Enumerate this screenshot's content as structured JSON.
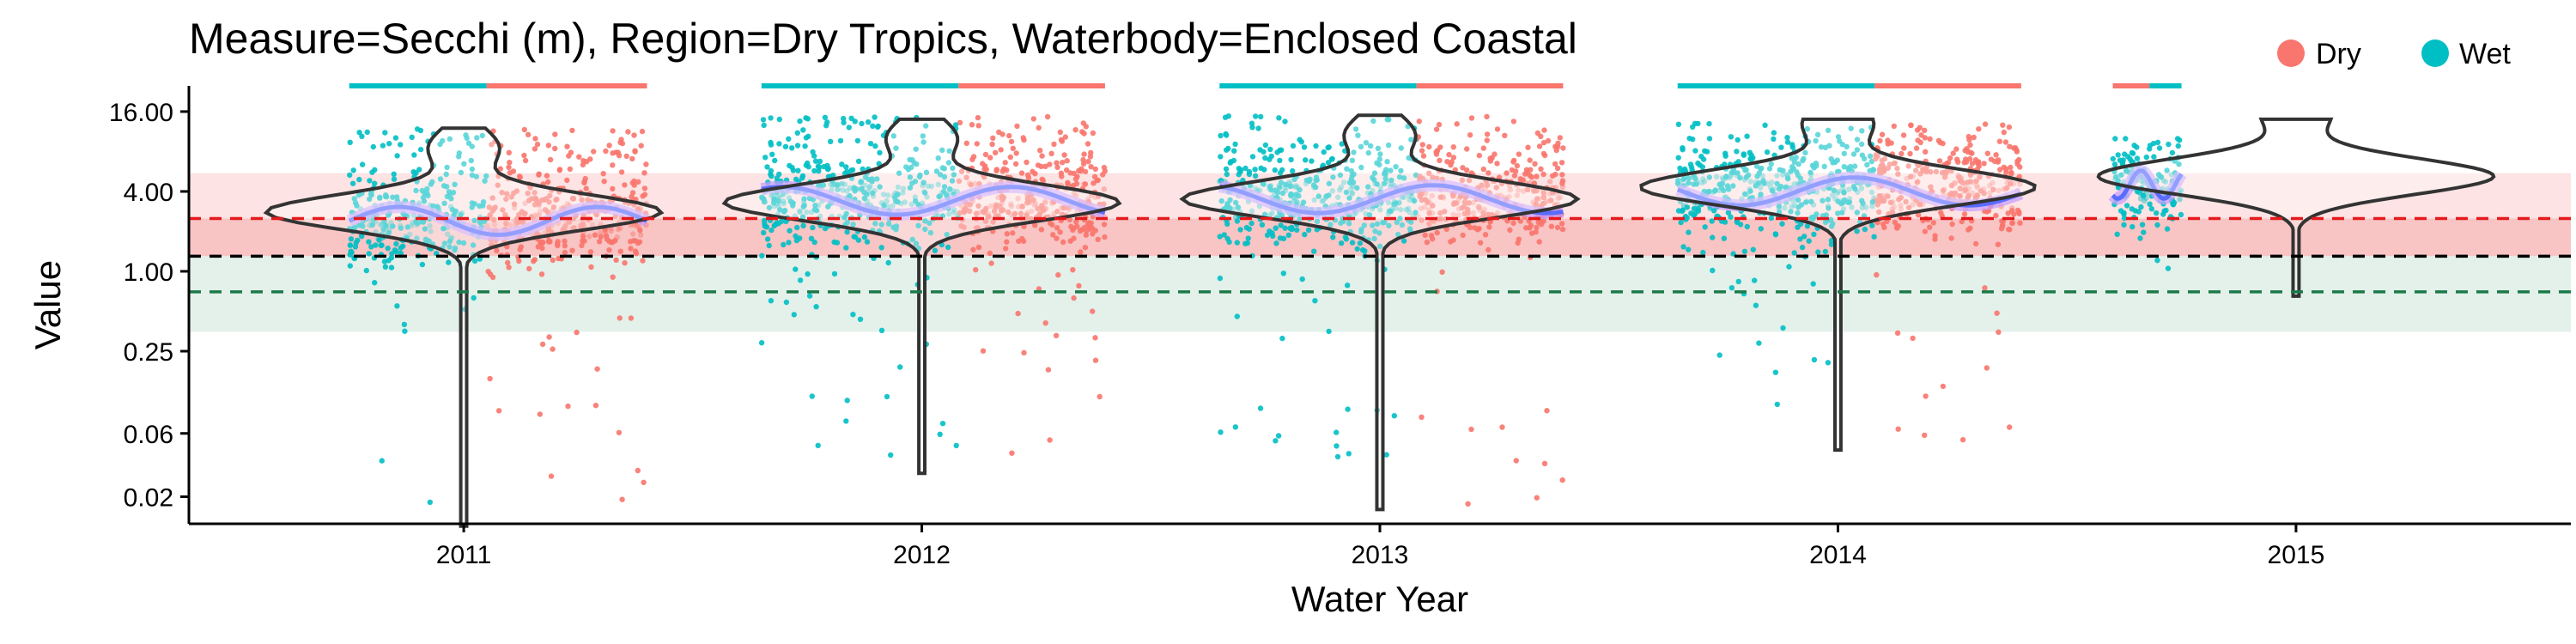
{
  "chart_data": {
    "type": "scatter",
    "title": "Measure=Secchi (m), Region=Dry Tropics, Waterbody=Enclosed Coastal",
    "xlabel": "Water Year",
    "ylabel": "Value",
    "y_scale": "log2",
    "ylim": [
      0.0125,
      25
    ],
    "y_ticks": [
      0.02,
      0.06,
      0.25,
      1.0,
      4.0,
      16.0
    ],
    "y_tick_labels": [
      "0.02",
      "0.06",
      "0.25",
      "1.00",
      "4.00",
      "16.00"
    ],
    "xlim": [
      2010.4,
      2015.6
    ],
    "x_ticks": [
      2011,
      2012,
      2013,
      2014,
      2015
    ],
    "x_tick_labels": [
      "2011",
      "2012",
      "2013",
      "2014",
      "2015"
    ],
    "legend": {
      "placement": "top-right",
      "entries": [
        {
          "label": "Dry",
          "color": "#F8766D"
        },
        {
          "label": "Wet",
          "color": "#00BFC4"
        }
      ]
    },
    "colors": {
      "dry": "#F8766D",
      "wet": "#00BFC4",
      "trend": "#5A6BFF",
      "trend_light": "#C39BFF",
      "violin": "#333333",
      "ref_red": "#E41A1C",
      "ref_black": "#000000",
      "ref_green": "#1B7A4A",
      "band_red_light": "#FDE3E3",
      "band_red": "#F9C4C4",
      "band_green": "#E3F1EA"
    },
    "reference_lines": [
      {
        "value": 2.5,
        "color": "red",
        "style": "dashed"
      },
      {
        "value": 1.3,
        "color": "black",
        "style": "dashed"
      },
      {
        "value": 0.7,
        "color": "green",
        "style": "dashed"
      }
    ],
    "bands": [
      {
        "from": 2.5,
        "to": 5.5,
        "color": "light-red"
      },
      {
        "from": 1.3,
        "to": 2.5,
        "color": "red"
      },
      {
        "from": 0.35,
        "to": 1.3,
        "color": "green"
      }
    ],
    "season_bars": [
      {
        "year": 2011,
        "wet": [
          2010.75,
          2011.05
        ],
        "dry": [
          2011.05,
          2011.4
        ]
      },
      {
        "year": 2012,
        "wet": [
          2011.65,
          2012.08
        ],
        "dry": [
          2012.08,
          2012.4
        ]
      },
      {
        "year": 2013,
        "wet": [
          2012.65,
          2013.08
        ],
        "dry": [
          2013.08,
          2013.4
        ]
      },
      {
        "year": 2014,
        "wet": [
          2013.65,
          2014.08
        ],
        "dry": [
          2014.08,
          2014.4
        ]
      },
      {
        "year": 2015,
        "wet": [
          2014.68,
          2014.75
        ],
        "dry": [
          2014.6,
          2014.68
        ]
      }
    ],
    "scatter_extents": [
      {
        "year": 2011,
        "from": 2010.75,
        "to": 2011.4,
        "wet_to": 2011.05,
        "min": 0.014,
        "max": 12,
        "median": 2.4
      },
      {
        "year": 2012,
        "from": 2011.65,
        "to": 2012.4,
        "wet_to": 2012.08,
        "min": 0.03,
        "max": 15,
        "median": 3.4
      },
      {
        "year": 2013,
        "from": 2012.65,
        "to": 2013.4,
        "wet_to": 2013.08,
        "min": 0.015,
        "max": 15,
        "median": 3.5
      },
      {
        "year": 2014,
        "from": 2013.65,
        "to": 2014.4,
        "wet_to": 2014.08,
        "min": 0.05,
        "max": 13,
        "median": 4.0
      },
      {
        "year": 2015,
        "from": 2014.6,
        "to": 2014.75,
        "wet_to": 2014.75,
        "min": 0.9,
        "max": 10,
        "median": 4.5
      }
    ],
    "violins": [
      {
        "year": 2011,
        "min": 0.012,
        "max": 12,
        "mode": 2.8
      },
      {
        "year": 2012,
        "min": 0.03,
        "max": 14,
        "mode": 3.3
      },
      {
        "year": 2013,
        "min": 0.016,
        "max": 15,
        "mode": 3.5
      },
      {
        "year": 2014,
        "min": 0.045,
        "max": 14,
        "mode": 4.3
      },
      {
        "year": 2015,
        "min": 0.65,
        "max": 14,
        "mode": 5.2
      }
    ]
  }
}
